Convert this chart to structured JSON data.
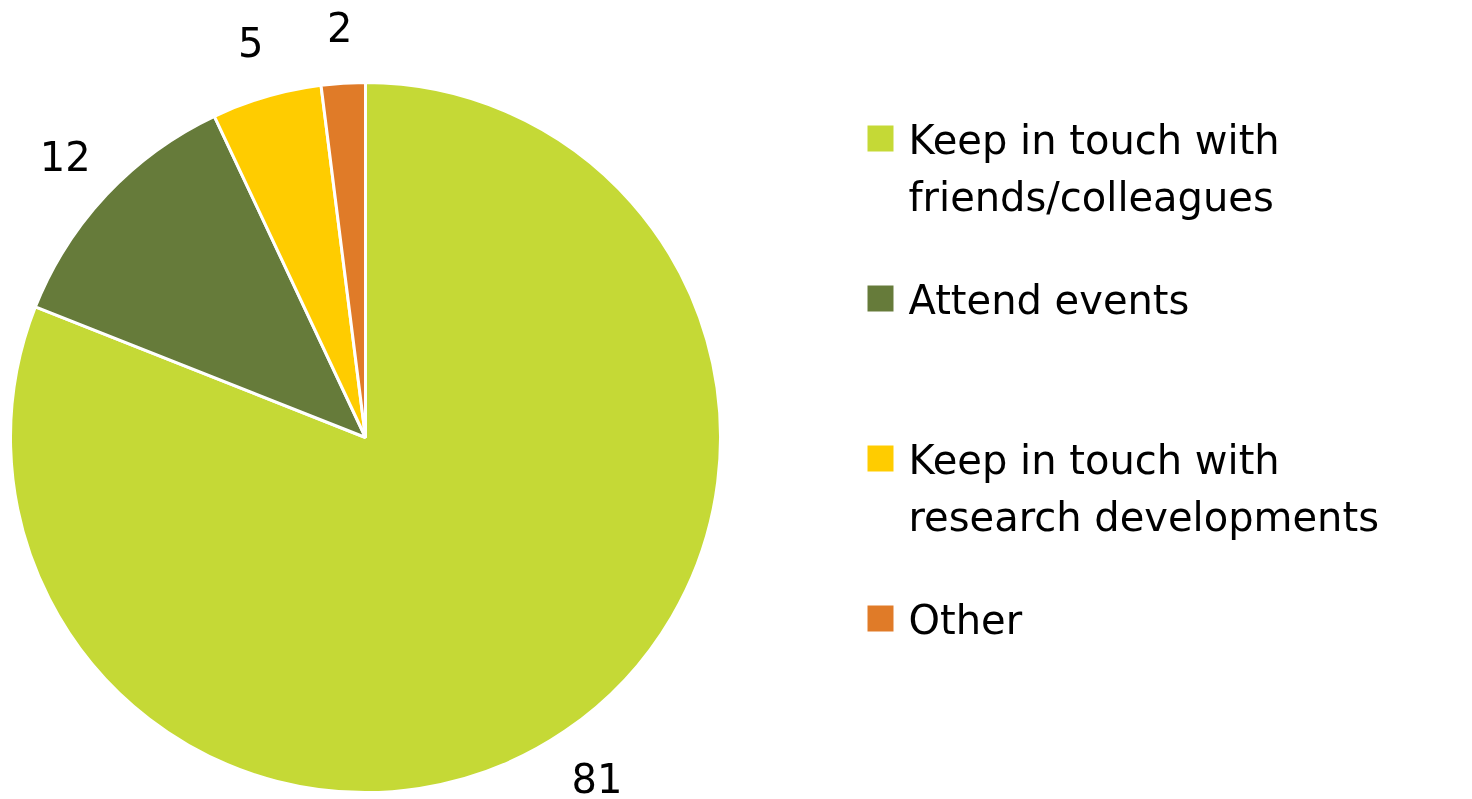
{
  "chart_data": {
    "type": "pie",
    "categories": [
      "Keep in touch with friends/colleagues",
      "Attend events",
      "Keep in touch with research developments",
      "Other"
    ],
    "values": [
      81,
      12,
      5,
      2
    ],
    "colors": [
      "#c5d936",
      "#667b3a",
      "#ffcc00",
      "#e07b28"
    ],
    "data_labels": true,
    "legend": "right"
  }
}
